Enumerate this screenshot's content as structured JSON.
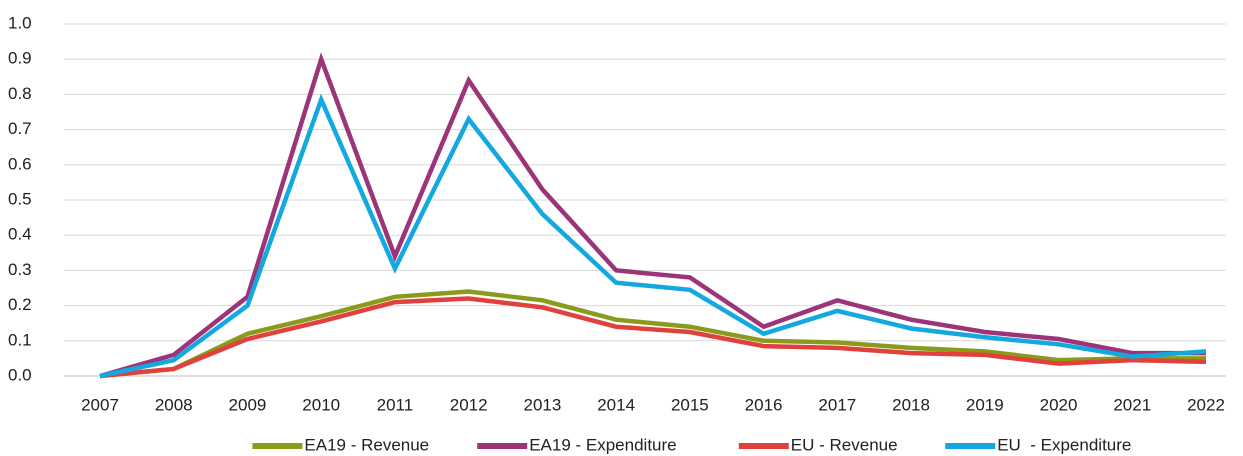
{
  "chart_data": {
    "type": "line",
    "categories": [
      "2007",
      "2008",
      "2009",
      "2010",
      "2011",
      "2012",
      "2013",
      "2014",
      "2015",
      "2016",
      "2017",
      "2018",
      "2019",
      "2020",
      "2021",
      "2022"
    ],
    "series": [
      {
        "name": "EA19 - Revenue",
        "color": "#8c9a1c",
        "values": [
          0,
          0.02,
          0.12,
          0.17,
          0.225,
          0.24,
          0.215,
          0.16,
          0.14,
          0.1,
          0.095,
          0.08,
          0.07,
          0.045,
          0.05,
          0.05
        ]
      },
      {
        "name": "EA19 - Expenditure",
        "color": "#9b3479",
        "values": [
          0,
          0.06,
          0.225,
          0.9,
          0.34,
          0.84,
          0.53,
          0.3,
          0.28,
          0.14,
          0.215,
          0.16,
          0.125,
          0.105,
          0.065,
          0.065
        ]
      },
      {
        "name": "EU - Revenue",
        "color": "#e0413c",
        "values": [
          0,
          0.02,
          0.105,
          0.155,
          0.21,
          0.22,
          0.195,
          0.14,
          0.125,
          0.085,
          0.08,
          0.065,
          0.06,
          0.035,
          0.045,
          0.04
        ]
      },
      {
        "name": "EU  - Expenditure",
        "color": "#13a8e0",
        "values": [
          0,
          0.045,
          0.2,
          0.785,
          0.305,
          0.73,
          0.46,
          0.265,
          0.245,
          0.12,
          0.185,
          0.135,
          0.11,
          0.09,
          0.055,
          0.07
        ]
      }
    ],
    "ylim": [
      0,
      1
    ],
    "yticks": [
      {
        "value": 0,
        "label": "0.0"
      },
      0.1,
      0.2,
      0.3,
      0.4,
      0.5,
      0.6,
      0.7,
      0.8,
      0.9,
      {
        "value": 1,
        "label": "1.0"
      }
    ],
    "grid": true,
    "legend": "bottom"
  }
}
